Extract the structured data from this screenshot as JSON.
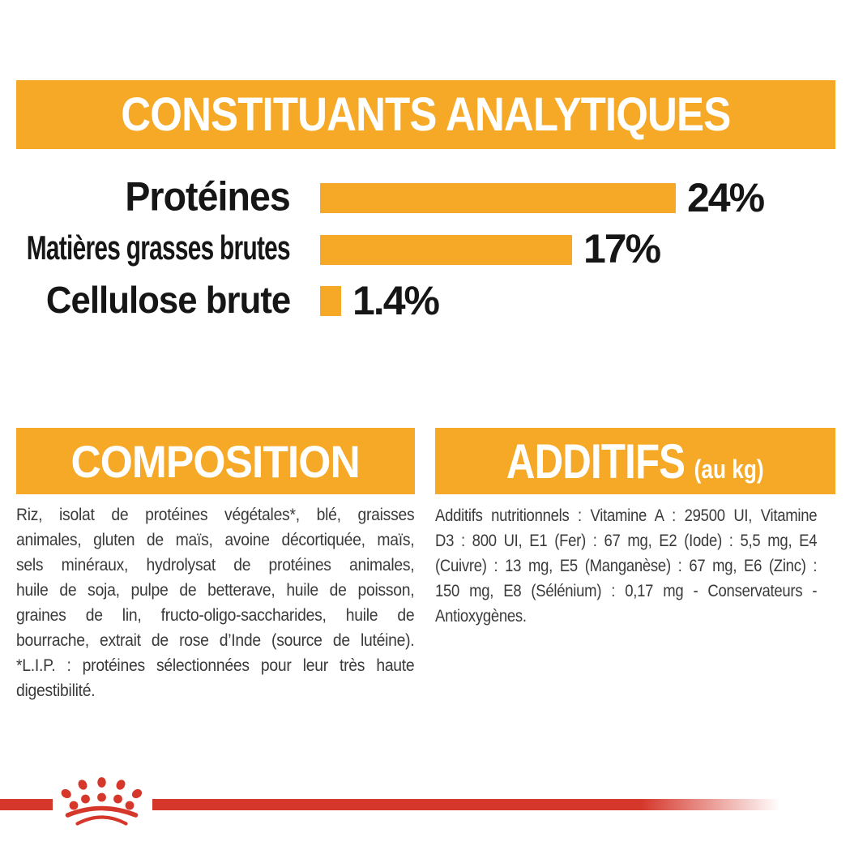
{
  "colors": {
    "banner_orange": "#F6A827",
    "brand_red": "#D5372B",
    "heading_white": "#FFFFFF",
    "label_black": "#161616",
    "body_text": "#3A3A3A",
    "background": "#FFFFFF"
  },
  "header": {
    "title": "CONSTITUANTS ANALYTIQUES"
  },
  "chart_data": {
    "type": "bar",
    "orientation": "horizontal",
    "title": "CONSTITUANTS ANALYTIQUES",
    "categories": [
      "Protéines",
      "Matières grasses brutes",
      "Cellulose brute"
    ],
    "values": [
      24,
      17,
      1.4
    ],
    "value_labels": [
      "24%",
      "17%",
      "1.4%"
    ],
    "unit": "%",
    "xlim": [
      0,
      24
    ],
    "bar_color": "#F6A827",
    "grid": false,
    "legend": false,
    "value_label_position": "right-of-bar"
  },
  "composition": {
    "title": "COMPOSITION",
    "lines": [
      "Riz, isolat de protéines végétales*, blé, graisses",
      "animales, gluten de maïs, avoine décortiquée, maïs,",
      "sels minéraux, hydrolysat de protéines animales,",
      "huile de soja, pulpe de betterave, huile de poisson,",
      "graines de lin, fructo-oligo-saccharides, huile de",
      "bourrache, extrait de rose d’Inde (source de lutéine).",
      "*L.I.P. : protéines sélectionnées pour leur très haute",
      "digestibilité."
    ]
  },
  "additifs": {
    "title": "ADDITIFS",
    "subtitle": "(au kg)",
    "lines": [
      "Additifs nutritionnels : Vitamine A : 29500 UI, Vitamine",
      "D3 : 800 UI, E1 (Fer) : 67 mg, E2 (Iode) : 5,5 mg, E4",
      "(Cuivre) : 13 mg, E5 (Manganèse) : 67 mg, E6 (Zinc) :",
      "150 mg, E8 (Sélénium) : 0,17 mg - Conservateurs -",
      "Antioxygènes."
    ]
  },
  "footer": {
    "logo": "royal-canin-crown"
  }
}
